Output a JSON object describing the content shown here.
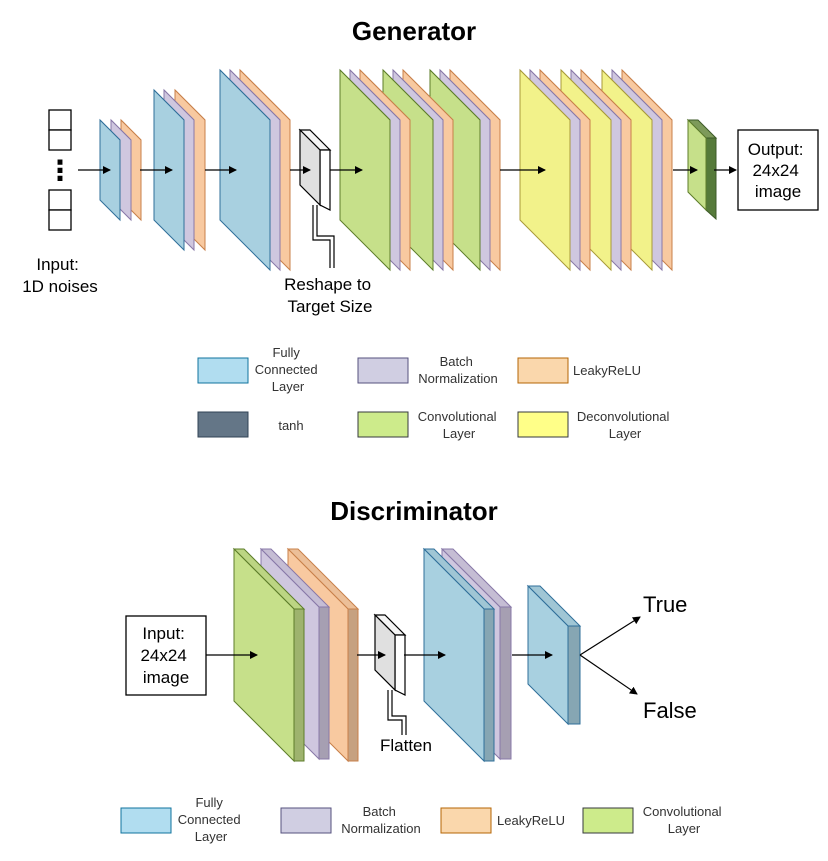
{
  "generator": {
    "title": "Generator",
    "input_label": [
      "Input:",
      "1D noises"
    ],
    "dots": "⋮",
    "reshape_label": [
      "Reshape to",
      "Target Size"
    ],
    "output_label": [
      "Output:",
      "24x24",
      "image"
    ]
  },
  "discriminator": {
    "title": "Discriminator",
    "input_label": [
      "Input:",
      "24x24",
      "image"
    ],
    "flatten_label": "Flatten",
    "out_true": "True",
    "out_false": "False"
  },
  "legend_generator": {
    "fc": [
      "Fully",
      "Connected",
      "Layer"
    ],
    "bn": [
      "Batch",
      "Normalization"
    ],
    "relu": [
      "LeakyReLU"
    ],
    "tanh": [
      "tanh"
    ],
    "conv": [
      "Convolutional",
      "Layer"
    ],
    "deconv": [
      "Deconvolutional",
      "Layer"
    ]
  },
  "legend_discriminator": {
    "fc": [
      "Fully",
      "Connected",
      "Layer"
    ],
    "bn": [
      "Batch",
      "Normalization"
    ],
    "relu": [
      "LeakyReLU"
    ],
    "conv": [
      "Convolutional",
      "Layer"
    ]
  },
  "colors": {
    "fc": "#a8d0e0",
    "fc_stroke": "#2f6f9a",
    "fc_legend": "#b1ddf0",
    "bn": "#cfc7df",
    "bn_stroke": "#8878a8",
    "relu": "#f8c9a0",
    "relu_stroke": "#c8804a",
    "conv": "#c6e08a",
    "conv_stroke": "#5d7d2a",
    "deconv": "#f2f28a",
    "deconv_stroke": "#a89a3a",
    "tanh": "#647687"
  }
}
